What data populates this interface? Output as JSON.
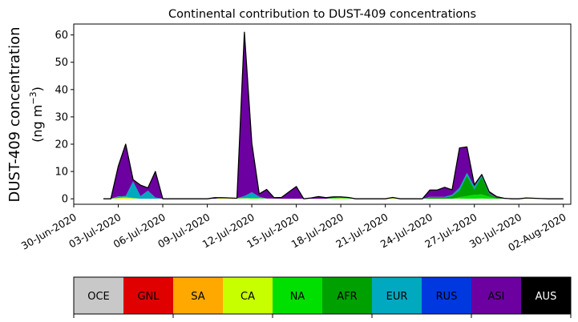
{
  "chart_data": {
    "type": "area",
    "stacked": true,
    "title": "Continental contribution to DUST-409 concentrations",
    "ylabel_line1": "DUST-409 concentration",
    "ylabel_line2_prefix": "(ng m",
    "ylabel_line2_sup": "−3",
    "ylabel_line2_suffix": ")",
    "x_start_date": "2020-07-02",
    "x_step_days": 1,
    "xlim": [
      "2020-06-30T00:00",
      "2020-08-02T12:00"
    ],
    "ylim": [
      -2,
      64
    ],
    "yticks": [
      0,
      10,
      20,
      30,
      40,
      50,
      60
    ],
    "xticks": [
      {
        "date": "2020-06-30",
        "label": "30-Jun-2020"
      },
      {
        "date": "2020-07-03",
        "label": "03-Jul-2020"
      },
      {
        "date": "2020-07-06",
        "label": "06-Jul-2020"
      },
      {
        "date": "2020-07-09",
        "label": "09-Jul-2020"
      },
      {
        "date": "2020-07-12",
        "label": "12-Jul-2020"
      },
      {
        "date": "2020-07-15",
        "label": "15-Jul-2020"
      },
      {
        "date": "2020-07-18",
        "label": "18-Jul-2020"
      },
      {
        "date": "2020-07-21",
        "label": "21-Jul-2020"
      },
      {
        "date": "2020-07-24",
        "label": "24-Jul-2020"
      },
      {
        "date": "2020-07-27",
        "label": "27-Jul-2020"
      },
      {
        "date": "2020-07-30",
        "label": "30-Jul-2020"
      },
      {
        "date": "2020-08-02",
        "label": "02-Aug-2020"
      }
    ],
    "series": [
      {
        "name": "OCE",
        "color": "#c8c8c8",
        "values": [
          0,
          0,
          0,
          0,
          0,
          0,
          0,
          0,
          0,
          0,
          0,
          0,
          0,
          0,
          0,
          0,
          0,
          0,
          0,
          0,
          0,
          0,
          0,
          0,
          0,
          0,
          0,
          0,
          0,
          0,
          0,
          0,
          0,
          0,
          0,
          0,
          0,
          0,
          0,
          0,
          0,
          0,
          0,
          0,
          0,
          0,
          0,
          0,
          0,
          0,
          0,
          0,
          0,
          0,
          0,
          0,
          0,
          0,
          0,
          0,
          0,
          0,
          0
        ]
      },
      {
        "name": "GNL",
        "color": "#e00000",
        "values": [
          0,
          0,
          0,
          0,
          0,
          0,
          0,
          0,
          0,
          0,
          0,
          0,
          0,
          0,
          0,
          0,
          0,
          0,
          0,
          0,
          0,
          0,
          0,
          0,
          0,
          0,
          0,
          0,
          0,
          0,
          0,
          0,
          0,
          0,
          0,
          0,
          0,
          0,
          0,
          0,
          0,
          0,
          0,
          0,
          0,
          0,
          0,
          0,
          0,
          0,
          0,
          0,
          0,
          0,
          0,
          0,
          0,
          0,
          0,
          0,
          0,
          0,
          0
        ]
      },
      {
        "name": "SA",
        "color": "#ffa800",
        "values": [
          0,
          0,
          0,
          0,
          0,
          0,
          0,
          0,
          0,
          0,
          0,
          0,
          0,
          0,
          0,
          0,
          0.1,
          0.1,
          0,
          0,
          0,
          0,
          0,
          0,
          0,
          0,
          0,
          0,
          0,
          0,
          0,
          0,
          0,
          0,
          0,
          0,
          0,
          0,
          0,
          0,
          0,
          0,
          0,
          0,
          0,
          0,
          0,
          0,
          0,
          0,
          0,
          0,
          0,
          0,
          0,
          0,
          0,
          0.1,
          0,
          0,
          0,
          0,
          0
        ]
      },
      {
        "name": "CA",
        "color": "#c8ff00",
        "values": [
          0,
          0,
          0.3,
          0.5,
          0.2,
          0,
          0,
          0,
          0,
          0,
          0,
          0,
          0,
          0,
          0,
          0,
          0.3,
          0.2,
          0.2,
          0.2,
          0.1,
          0.1,
          0.1,
          0.1,
          0,
          0,
          0,
          0,
          0,
          0,
          0,
          0.1,
          0.2,
          0.1,
          0,
          0,
          0,
          0,
          0,
          0.2,
          0,
          0,
          0,
          0,
          0,
          0,
          0,
          0,
          0.1,
          0,
          0,
          0.1,
          0,
          0,
          0,
          0,
          0,
          0.2,
          0.2,
          0.1,
          0,
          0,
          0
        ]
      },
      {
        "name": "NA",
        "color": "#00e000",
        "values": [
          0,
          0,
          0.2,
          0.3,
          0.2,
          0,
          0,
          0,
          0,
          0,
          0,
          0,
          0,
          0,
          0,
          0,
          0,
          0,
          0,
          0,
          0.3,
          0.2,
          0,
          0,
          0,
          0,
          0,
          0,
          0,
          0,
          0,
          0.2,
          0.3,
          0.2,
          0,
          0,
          0,
          0,
          0,
          0.1,
          0,
          0,
          0,
          0,
          0,
          0,
          0,
          0,
          0.5,
          1.0,
          1.5,
          1.5,
          0.8,
          0,
          0,
          0,
          0,
          0,
          0,
          0,
          0,
          0,
          0
        ]
      },
      {
        "name": "AFR",
        "color": "#00a000",
        "values": [
          0,
          0,
          0.2,
          0,
          0,
          0,
          0,
          0,
          0,
          0,
          0,
          0,
          0,
          0,
          0,
          0,
          0,
          0,
          0,
          0,
          0,
          0,
          0,
          0,
          0,
          0,
          0,
          0,
          0,
          0,
          0,
          0.2,
          0.2,
          0.2,
          0,
          0,
          0,
          0,
          0,
          0.2,
          0,
          0,
          0,
          0,
          0.5,
          0.5,
          0.5,
          1.0,
          2.5,
          7.5,
          2.0,
          6.5,
          1.0,
          0.5,
          0,
          0,
          0,
          0,
          0,
          0,
          0,
          0,
          0
        ]
      },
      {
        "name": "EUR",
        "color": "#00a8c0",
        "values": [
          0,
          0,
          0.2,
          0.2,
          6.0,
          1.0,
          3.0,
          0.5,
          0,
          0,
          0,
          0,
          0,
          0,
          0,
          0,
          0,
          0,
          0,
          0.8,
          2.0,
          0.5,
          0,
          0,
          0,
          0,
          0,
          0,
          0,
          0,
          0,
          0,
          0,
          0,
          0,
          0,
          0,
          0,
          0,
          0,
          0,
          0,
          0,
          0,
          0.2,
          0.2,
          0.2,
          0.5,
          1.0,
          1.0,
          1.0,
          0.5,
          0.2,
          0,
          0,
          0,
          0,
          0,
          0,
          0,
          0,
          0,
          0
        ]
      },
      {
        "name": "RUS",
        "color": "#0038e0",
        "values": [
          0,
          0,
          0,
          0,
          0,
          0,
          0,
          0,
          0,
          0,
          0,
          0,
          0,
          0,
          0,
          0,
          0,
          0,
          0,
          0,
          0,
          0,
          0,
          0,
          0,
          0,
          0,
          0,
          0,
          0,
          0,
          0,
          0,
          0,
          0,
          0,
          0,
          0,
          0,
          0,
          0,
          0,
          0,
          0,
          0,
          0,
          0,
          0,
          0,
          0,
          0,
          0,
          0,
          0,
          0,
          0,
          0,
          0,
          0,
          0,
          0,
          0,
          0
        ]
      },
      {
        "name": "ASI",
        "color": "#6c00a0",
        "values": [
          0,
          0,
          11.0,
          19.0,
          0.6,
          4.0,
          1.0,
          9.5,
          0,
          0,
          0,
          0,
          0,
          0,
          0,
          0.4,
          0,
          0,
          0,
          60.0,
          18.0,
          1.0,
          3.3,
          0.3,
          0.5,
          2.5,
          4.5,
          0,
          0.3,
          0.8,
          0.4,
          0.2,
          0,
          0,
          0,
          0,
          0,
          0,
          0,
          0,
          0,
          0,
          0,
          0,
          2.5,
          2.5,
          3.5,
          1.8,
          14.5,
          9.5,
          0.6,
          0.3,
          0.6,
          0.3,
          0.2,
          0,
          0,
          0,
          0,
          0,
          0,
          0,
          0
        ]
      },
      {
        "name": "AUS",
        "color": "#000000",
        "values": [
          0,
          0,
          0,
          0,
          0,
          0,
          0,
          0,
          0,
          0,
          0,
          0,
          0,
          0,
          0,
          0,
          0,
          0,
          0,
          0,
          0,
          0,
          0,
          0,
          0,
          0,
          0,
          0,
          0,
          0,
          0,
          0,
          0,
          0,
          0,
          0,
          0,
          0,
          0,
          0,
          0,
          0,
          0,
          0,
          0,
          0,
          0,
          0,
          0,
          0,
          0,
          0,
          0,
          0,
          0,
          0,
          0,
          0,
          0,
          0,
          0,
          0,
          0
        ]
      }
    ],
    "colorbar_labels": [
      "OCE",
      "GNL",
      "SA",
      "CA",
      "NA",
      "AFR",
      "EUR",
      "RUS",
      "ASI",
      "AUS"
    ],
    "colorbar_colors": [
      "#c8c8c8",
      "#e00000",
      "#ffa800",
      "#c8ff00",
      "#00e000",
      "#00a000",
      "#00a8c0",
      "#0038e0",
      "#6c00a0",
      "#000000"
    ],
    "colorbar_text_colors": [
      "#000000",
      "#000000",
      "#000000",
      "#000000",
      "#000000",
      "#000000",
      "#000000",
      "#000000",
      "#000000",
      "#ffffff"
    ]
  }
}
